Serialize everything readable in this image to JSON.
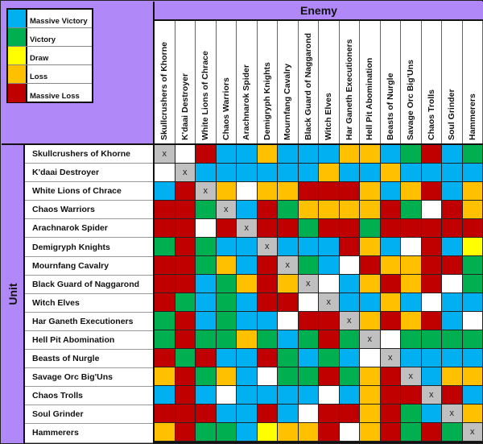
{
  "legend": {
    "items": [
      {
        "code": "B",
        "label": "Massive Victory",
        "color": "#00b0f0"
      },
      {
        "code": "G",
        "label": "Victory",
        "color": "#00b050"
      },
      {
        "code": "Y",
        "label": "Draw",
        "color": "#ffff00"
      },
      {
        "code": "O",
        "label": "Loss",
        "color": "#ffc000"
      },
      {
        "code": "R",
        "label": "Massive Loss",
        "color": "#c00000"
      }
    ]
  },
  "header": {
    "enemy_label": "Enemy",
    "unit_label": "Unit"
  },
  "self_marker": "x",
  "chart_data": {
    "type": "heatmap",
    "title": "",
    "xlabel": "Enemy",
    "ylabel": "Unit",
    "categories_x": [
      "Skullcrushers of Khorne",
      "K'daai Destroyer",
      "White Lions of Chrace",
      "Chaos Warriors",
      "Arachnarok Spider",
      "Demigryph Knights",
      "Mournfang Cavalry",
      "Black Guard of Naggarond",
      "Witch Elves",
      "Har Ganeth Executioners",
      "Hell Pit Abomination",
      "Beasts of Nurgle",
      "Savage Orc Big'Uns",
      "Chaos Trolls",
      "Soul Grinder",
      "Hammerers"
    ],
    "categories_y": [
      "Skullcrushers of Khorne",
      "K'daai Destroyer",
      "White Lions of Chrace",
      "Chaos Warriors",
      "Arachnarok Spider",
      "Demigryph Knights",
      "Mournfang Cavalry",
      "Black Guard of Naggarond",
      "Witch Elves",
      "Har Ganeth Executioners",
      "Hell Pit Abomination",
      "Beasts of Nurgle",
      "Savage Orc Big'Uns",
      "Chaos Trolls",
      "Soul Grinder",
      "Hammerers"
    ],
    "value_legend": {
      "B": "Massive Victory",
      "G": "Victory",
      "Y": "Draw",
      "O": "Loss",
      "R": "Massive Loss",
      "W": "No data",
      "X": "Same unit"
    },
    "values": [
      [
        "X",
        "W",
        "R",
        "B",
        "B",
        "O",
        "B",
        "B",
        "B",
        "O",
        "O",
        "B",
        "G",
        "R",
        "B",
        "G"
      ],
      [
        "W",
        "X",
        "B",
        "B",
        "B",
        "B",
        "B",
        "B",
        "O",
        "B",
        "B",
        "O",
        "B",
        "B",
        "B",
        "B"
      ],
      [
        "B",
        "R",
        "X",
        "O",
        "W",
        "O",
        "O",
        "R",
        "R",
        "R",
        "O",
        "B",
        "O",
        "R",
        "B",
        "O"
      ],
      [
        "R",
        "R",
        "G",
        "X",
        "B",
        "R",
        "G",
        "O",
        "O",
        "O",
        "O",
        "R",
        "G",
        "W",
        "R",
        "O"
      ],
      [
        "R",
        "R",
        "W",
        "R",
        "X",
        "R",
        "R",
        "G",
        "R",
        "R",
        "G",
        "R",
        "R",
        "R",
        "R",
        "R"
      ],
      [
        "G",
        "R",
        "G",
        "B",
        "B",
        "X",
        "B",
        "B",
        "B",
        "R",
        "O",
        "B",
        "W",
        "R",
        "B",
        "Y"
      ],
      [
        "R",
        "R",
        "G",
        "O",
        "B",
        "R",
        "X",
        "G",
        "B",
        "W",
        "R",
        "O",
        "O",
        "R",
        "R",
        "G"
      ],
      [
        "R",
        "R",
        "B",
        "G",
        "O",
        "R",
        "O",
        "X",
        "W",
        "B",
        "O",
        "R",
        "O",
        "R",
        "W",
        "G"
      ],
      [
        "R",
        "G",
        "B",
        "G",
        "B",
        "R",
        "R",
        "W",
        "X",
        "B",
        "B",
        "O",
        "B",
        "W",
        "B",
        "B"
      ],
      [
        "G",
        "R",
        "B",
        "G",
        "B",
        "B",
        "W",
        "R",
        "R",
        "X",
        "O",
        "R",
        "O",
        "R",
        "B",
        "W"
      ],
      [
        "G",
        "R",
        "G",
        "G",
        "O",
        "G",
        "B",
        "G",
        "R",
        "G",
        "X",
        "W",
        "G",
        "G",
        "G",
        "G"
      ],
      [
        "R",
        "G",
        "R",
        "B",
        "B",
        "R",
        "G",
        "B",
        "G",
        "B",
        "W",
        "X",
        "B",
        "B",
        "B",
        "B"
      ],
      [
        "O",
        "R",
        "G",
        "O",
        "B",
        "W",
        "G",
        "G",
        "R",
        "G",
        "O",
        "R",
        "X",
        "B",
        "O",
        "O"
      ],
      [
        "B",
        "R",
        "B",
        "W",
        "B",
        "B",
        "B",
        "B",
        "W",
        "B",
        "O",
        "R",
        "R",
        "X",
        "R",
        "B"
      ],
      [
        "R",
        "R",
        "R",
        "B",
        "B",
        "R",
        "B",
        "W",
        "R",
        "R",
        "O",
        "R",
        "G",
        "B",
        "X",
        "O"
      ],
      [
        "O",
        "R",
        "G",
        "G",
        "B",
        "Y",
        "O",
        "O",
        "R",
        "W",
        "O",
        "R",
        "G",
        "R",
        "G",
        "X"
      ]
    ]
  }
}
